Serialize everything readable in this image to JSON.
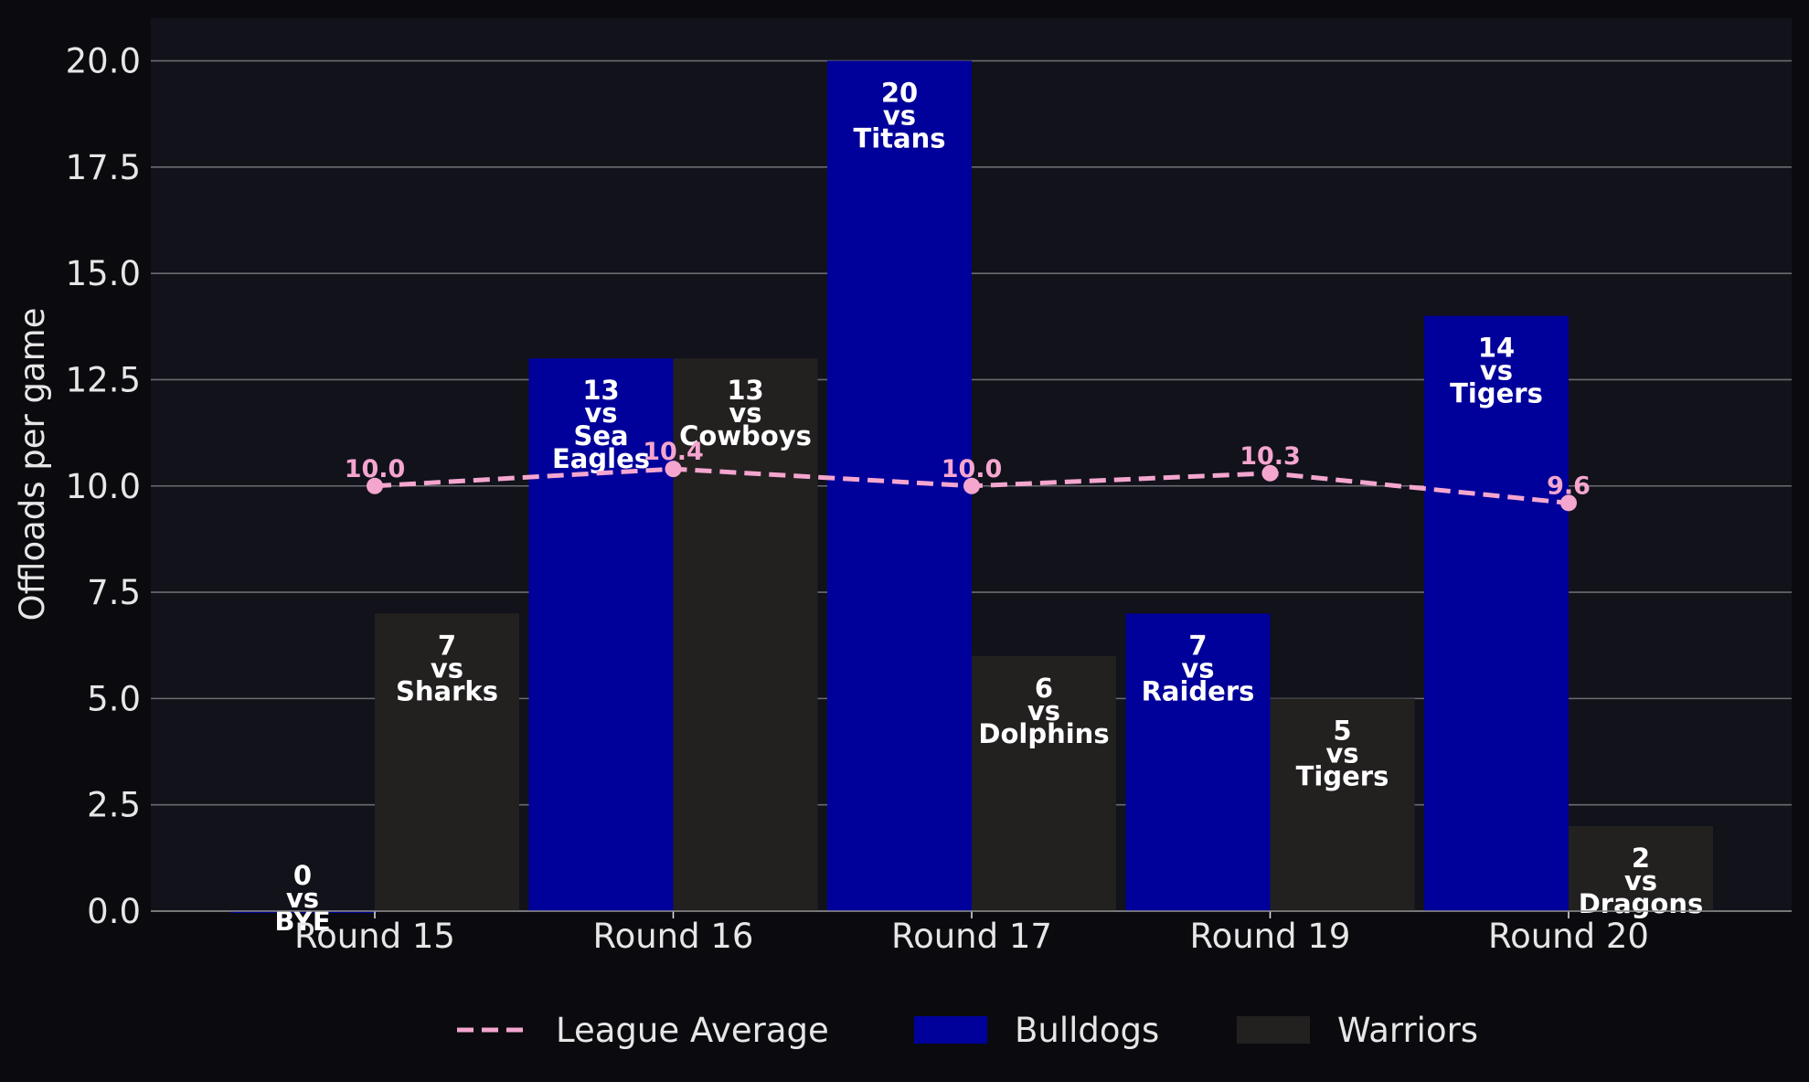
{
  "colors": {
    "background": "#0b0b0f",
    "plot_background": "#12121b",
    "grid": "#6b6b70",
    "text": "#e6e6e6",
    "bulldogs": "#00009a",
    "warriors": "#232020",
    "league_average": "#f4a6cf",
    "bar_label": "#ffffff"
  },
  "chart_data": {
    "type": "bar",
    "title": "",
    "xlabel": "",
    "ylabel": "Offloads per game",
    "ylim": [
      0,
      21
    ],
    "yticks": [
      "0.0",
      "2.5",
      "5.0",
      "7.5",
      "10.0",
      "12.5",
      "15.0",
      "17.5",
      "20.0"
    ],
    "ytick_values": [
      0,
      2.5,
      5,
      7.5,
      10,
      12.5,
      15,
      17.5,
      20
    ],
    "grid": "horizontal",
    "legend_position": "bottom-center",
    "categories": [
      "Round 15",
      "Round 16",
      "Round 17",
      "Round 19",
      "Round 20"
    ],
    "series": [
      {
        "name": "Bulldogs",
        "kind": "bar",
        "values": [
          0,
          13,
          20,
          7,
          14
        ],
        "labels": [
          [
            "0",
            "vs",
            "BYE"
          ],
          [
            "13",
            "vs",
            "Sea",
            "Eagles"
          ],
          [
            "20",
            "vs",
            "Titans"
          ],
          [
            "7",
            "vs",
            "Raiders"
          ],
          [
            "14",
            "vs",
            "Tigers"
          ]
        ]
      },
      {
        "name": "Warriors",
        "kind": "bar",
        "values": [
          7,
          13,
          6,
          5,
          2
        ],
        "labels": [
          [
            "7",
            "vs",
            "Sharks"
          ],
          [
            "13",
            "vs",
            "Cowboys"
          ],
          [
            "6",
            "vs",
            "Dolphins"
          ],
          [
            "5",
            "vs",
            "Tigers"
          ],
          [
            "2",
            "vs",
            "Dragons"
          ]
        ]
      },
      {
        "name": "League Average",
        "kind": "line",
        "style": "dashed",
        "values": [
          10.0,
          10.4,
          10.0,
          10.3,
          9.6
        ],
        "labels": [
          "10.0",
          "10.4",
          "10.0",
          "10.3",
          "9.6"
        ]
      }
    ],
    "legend": [
      "League Average",
      "Bulldogs",
      "Warriors"
    ]
  }
}
